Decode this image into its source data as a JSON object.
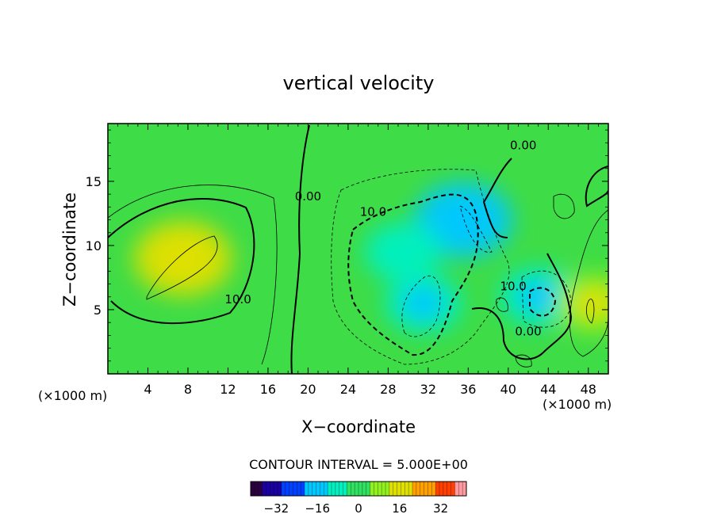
{
  "chart_data": {
    "type": "heatmap",
    "title": "vertical velocity",
    "xlabel": "X−coordinate",
    "ylabel": "Z−coordinate",
    "x_unit_left": "(×1000 m)",
    "x_unit_right": "(×1000 m)",
    "xlim": [
      0,
      50
    ],
    "ylim": [
      0,
      19.5
    ],
    "x_ticks": [
      4,
      8,
      12,
      16,
      20,
      24,
      28,
      32,
      36,
      40,
      44,
      48
    ],
    "y_ticks": [
      5,
      10,
      15
    ],
    "contour_interval_text": "CONTOUR INTERVAL = 5.000E+00",
    "contour_labels": [
      {
        "text": "0.00",
        "x": 20,
        "z": 13.5
      },
      {
        "text": "10.0",
        "x": 26.5,
        "z": 12.3
      },
      {
        "text": "0.00",
        "x": 41.5,
        "z": 17.5
      },
      {
        "text": "10.0",
        "x": 13,
        "z": 5.5
      },
      {
        "text": "10.0",
        "x": 40.5,
        "z": 6.5
      },
      {
        "text": "0.00",
        "x": 42,
        "z": 3.0
      }
    ],
    "field_extremes": [
      {
        "x": 7.5,
        "z": 9,
        "w": 14,
        "sign": "positive"
      },
      {
        "x": 31.5,
        "z": 5.5,
        "w": -12,
        "sign": "negative"
      },
      {
        "x": 35.5,
        "z": 12,
        "w": -14,
        "sign": "negative"
      },
      {
        "x": 29.5,
        "z": 9.5,
        "w": -9,
        "sign": "negative"
      },
      {
        "x": 43,
        "z": 6,
        "w": -11,
        "sign": "negative"
      },
      {
        "x": 48.5,
        "z": 5.5,
        "w": 9,
        "sign": "positive"
      }
    ],
    "colorbar": {
      "range": [
        -42,
        42
      ],
      "tick_labels": [
        "−32",
        "−16",
        "0",
        "16",
        "32"
      ],
      "tick_values": [
        -32,
        -16,
        0,
        16,
        32
      ],
      "colormap": [
        "#2a0040",
        "#1a00a0",
        "#0040ff",
        "#00c8ff",
        "#00f0c0",
        "#30e060",
        "#90f020",
        "#e0e000",
        "#ffa000",
        "#ff4000",
        "#ff9aa0"
      ]
    }
  }
}
